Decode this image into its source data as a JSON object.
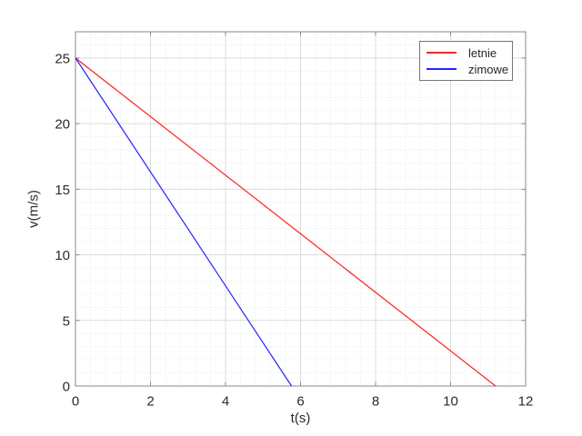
{
  "chart_data": {
    "type": "line",
    "xlabel": "t(s)",
    "ylabel": "v(m/s)",
    "xlim": [
      0,
      12
    ],
    "ylim": [
      0,
      27
    ],
    "xticks": [
      0,
      2,
      4,
      6,
      8,
      10,
      12
    ],
    "yticks": [
      0,
      5,
      10,
      15,
      20,
      25
    ],
    "x_major_step": 2,
    "y_major_step": 5,
    "x_minor_step": 0.4,
    "y_minor_step": 1,
    "grid": "on",
    "minor_grid": "on",
    "legend_position": "top-right",
    "series": [
      {
        "name": "letnie",
        "color": "#ff2020",
        "points": [
          [
            0,
            25
          ],
          [
            11.2,
            0
          ]
        ]
      },
      {
        "name": "zimowe",
        "color": "#2424ff",
        "points": [
          [
            0,
            25
          ],
          [
            5.76,
            0
          ]
        ]
      }
    ]
  },
  "colors": {
    "background": "#ffffff",
    "axis_box": "#8a8a8a",
    "tick_text": "#2b2b2b",
    "grid_major": "#dcdcdc",
    "grid_minor": "#eaeaea",
    "legend_border": "#767676"
  }
}
